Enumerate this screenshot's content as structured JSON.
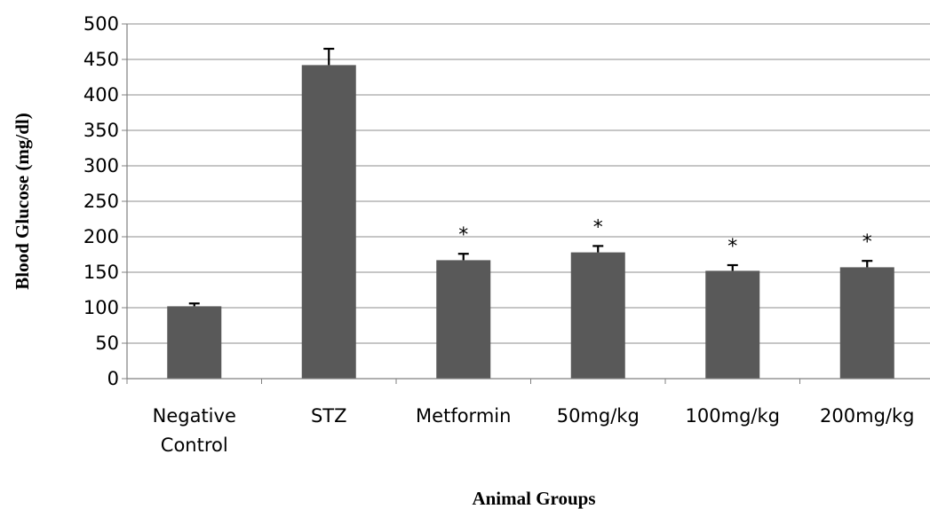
{
  "chart_data": {
    "type": "bar",
    "title": "",
    "xlabel": "Animal Groups",
    "ylabel": "Blood Glucose (mg/dl)",
    "ylim": [
      0,
      500
    ],
    "yticks": [
      0,
      50,
      100,
      150,
      200,
      250,
      300,
      350,
      400,
      450,
      500
    ],
    "grid": true,
    "categories": [
      [
        "Negative",
        "Control"
      ],
      [
        "STZ"
      ],
      [
        "Metformin"
      ],
      [
        "50mg/kg"
      ],
      [
        "100mg/kg"
      ],
      [
        "200mg/kg"
      ]
    ],
    "values": [
      102,
      442,
      167,
      178,
      152,
      157
    ],
    "errors": [
      4,
      23,
      9,
      9,
      8,
      9
    ],
    "annotations": [
      "",
      "",
      "*",
      "*",
      "*",
      "*"
    ],
    "bar_color": "#595959",
    "grid_color": "#8c8c8c"
  }
}
